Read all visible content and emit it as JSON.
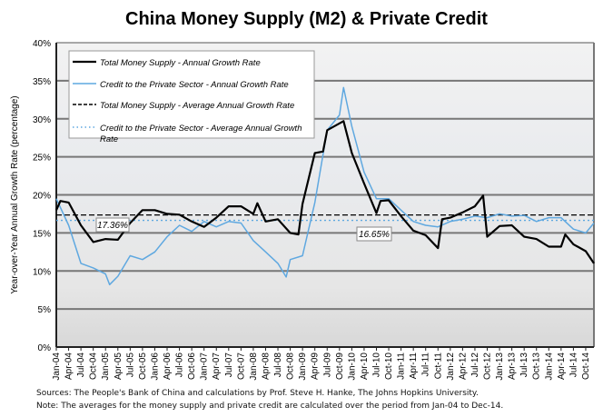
{
  "chart_data": {
    "type": "line",
    "title": "China Money Supply (M2) & Private Credit",
    "xlabel": "",
    "ylabel": "Year-over-Year Annual Growth Rate (percentage)",
    "ylim": [
      0,
      40
    ],
    "yticks": [
      "0%",
      "5%",
      "10%",
      "15%",
      "20%",
      "25%",
      "30%",
      "35%",
      "40%"
    ],
    "xticks": [
      "Jan-04",
      "Apr-04",
      "Jul-04",
      "Oct-04",
      "Jan-05",
      "Apr-05",
      "Jul-05",
      "Oct-05",
      "Jan-06",
      "Apr-06",
      "Jul-06",
      "Oct-06",
      "Jan-07",
      "Apr-07",
      "Jul-07",
      "Oct-07",
      "Jan-08",
      "Apr-08",
      "Jul-08",
      "Oct-08",
      "Jan-09",
      "Apr-09",
      "Jul-09",
      "Oct-09",
      "Jan-10",
      "Apr-10",
      "Jul-10",
      "Oct-10",
      "Jan-11",
      "Apr-11",
      "Jul-11",
      "Oct-11",
      "Jan-12",
      "Apr-12",
      "Jul-12",
      "Oct-12",
      "Jan-13",
      "Apr-13",
      "Jul-13",
      "Oct-13",
      "Jan-14",
      "Apr-14",
      "Jul-14",
      "Oct-14"
    ],
    "grid": true,
    "legend_position": "top-left",
    "series": [
      {
        "name": "Total Money Supply - Annual Growth Rate",
        "color": "#000000",
        "style": "solid",
        "x": [
          "2004-01",
          "2004-02",
          "2004-04",
          "2004-07",
          "2004-10",
          "2005-01",
          "2005-04",
          "2005-07",
          "2005-10",
          "2006-01",
          "2006-04",
          "2006-07",
          "2006-10",
          "2007-01",
          "2007-04",
          "2007-07",
          "2007-10",
          "2008-01",
          "2008-02",
          "2008-04",
          "2008-07",
          "2008-10",
          "2008-12",
          "2009-01",
          "2009-04",
          "2009-06",
          "2009-07",
          "2009-10",
          "2009-11",
          "2010-01",
          "2010-04",
          "2010-07",
          "2010-08",
          "2010-10",
          "2011-01",
          "2011-04",
          "2011-07",
          "2011-10",
          "2011-11",
          "2012-01",
          "2012-04",
          "2012-07",
          "2012-09",
          "2012-10",
          "2013-01",
          "2013-04",
          "2013-07",
          "2013-10",
          "2014-01",
          "2014-04",
          "2014-05",
          "2014-07",
          "2014-10",
          "2014-12"
        ],
        "values": [
          18,
          19.2,
          19,
          16,
          13.8,
          14.2,
          14.1,
          16.3,
          18,
          18,
          17.5,
          17.4,
          16.5,
          15.8,
          17,
          18.5,
          18.5,
          17.5,
          18.9,
          16.5,
          16.8,
          15,
          14.8,
          18.8,
          25.5,
          25.7,
          28.5,
          29.4,
          29.7,
          25.5,
          21.5,
          17.6,
          19.2,
          19.3,
          17.2,
          15.3,
          14.7,
          13,
          16.8,
          17,
          17.7,
          18.5,
          19.9,
          14.5,
          15.9,
          16,
          14.5,
          14.2,
          13.2,
          13.2,
          14.8,
          13.5,
          12.6,
          11
        ]
      },
      {
        "name": "Credit to the Private Sector - Annual Growth Rate",
        "color": "#5fa8e0",
        "style": "solid",
        "x": [
          "2004-01",
          "2004-04",
          "2004-07",
          "2004-10",
          "2005-01",
          "2005-02",
          "2005-04",
          "2005-07",
          "2005-10",
          "2006-01",
          "2006-04",
          "2006-07",
          "2006-10",
          "2007-01",
          "2007-04",
          "2007-07",
          "2007-10",
          "2008-01",
          "2008-04",
          "2008-07",
          "2008-09",
          "2008-10",
          "2009-01",
          "2009-04",
          "2009-07",
          "2009-10",
          "2009-11",
          "2010-01",
          "2010-04",
          "2010-07",
          "2010-10",
          "2011-01",
          "2011-04",
          "2011-07",
          "2011-10",
          "2012-01",
          "2012-04",
          "2012-07",
          "2012-10",
          "2013-01",
          "2013-04",
          "2013-07",
          "2013-10",
          "2014-01",
          "2014-04",
          "2014-07",
          "2014-10",
          "2014-12"
        ],
        "values": [
          19.5,
          16,
          11,
          10.4,
          9.6,
          8.2,
          9.3,
          12,
          11.5,
          12.5,
          14.5,
          16,
          15.2,
          16.5,
          15.8,
          16.5,
          16.3,
          14,
          12.5,
          11,
          9.2,
          11.5,
          12,
          19,
          28.5,
          30.5,
          34.1,
          29,
          23,
          19.5,
          19.5,
          18,
          16.5,
          16,
          15.8,
          16.5,
          16.8,
          17.2,
          17,
          17.5,
          17.2,
          17.3,
          16.5,
          17,
          17,
          15.5,
          15,
          16.3
        ]
      },
      {
        "name": "Total Money Supply - Average Annual Growth Rate",
        "color": "#000000",
        "style": "dashed",
        "value": 17.36,
        "label": "17.36%"
      },
      {
        "name": "Credit to the Private Sector - Average Annual Growth Rate",
        "color": "#5fa8e0",
        "style": "dotted",
        "value": 16.65,
        "label": "16.65%"
      }
    ],
    "annotations": [
      "Sources: The People's Bank of China and calculations by Prof. Steve H. Hanke, The Johns Hopkins University.",
      "Note: The averages for the money supply and private credit are calculated over the period from Jan-04 to Dec-14."
    ]
  }
}
